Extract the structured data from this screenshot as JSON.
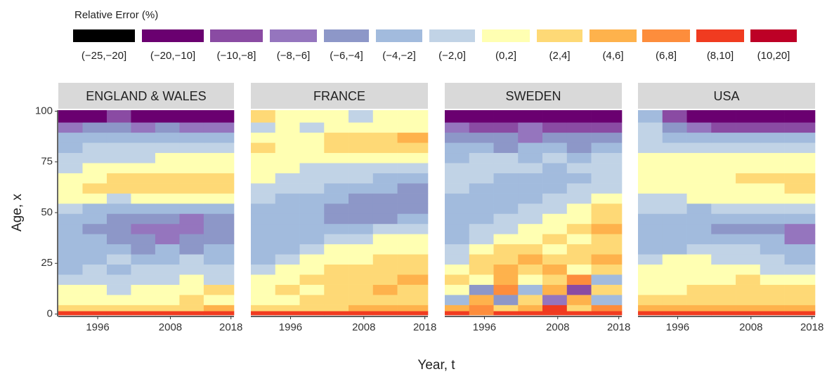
{
  "chart_data": {
    "type": "heatmap",
    "legend": {
      "title": "Relative Error (%)",
      "labels": [
        "(−25,−20]",
        "(−20,−10]",
        "(−10,−8]",
        "(−8,−6]",
        "(−6,−4]",
        "(−4,−2]",
        "(−2,0]",
        "(0,2]",
        "(2,4]",
        "(4,6]",
        "(6,8]",
        "(8,10]",
        "(10,20]"
      ],
      "breaks": [
        -25,
        -20,
        -10,
        -8,
        -6,
        -4,
        -2,
        0,
        2,
        4,
        6,
        8,
        10,
        20
      ],
      "colors": [
        "#000000",
        "#6a0070",
        "#8a4ba3",
        "#9575be",
        "#8d97c8",
        "#a2bbdd",
        "#c1d3e6",
        "#ffffb2",
        "#fed976",
        "#feb24c",
        "#fd8d3c",
        "#f03b20",
        "#bd0026"
      ]
    },
    "x_label": "Year, t",
    "y_label": "Age, x",
    "xlim": [
      1989.5,
      2018.5
    ],
    "ylim": [
      -0.5,
      100.5
    ],
    "xticks": [
      1996,
      2008,
      2018
    ],
    "yticks": [
      0,
      25,
      50,
      75,
      100
    ],
    "x": [
      1990,
      1994,
      1998,
      2002,
      2006,
      2010,
      2014
    ],
    "y": [
      0,
      2,
      5,
      10,
      15,
      20,
      25,
      30,
      35,
      40,
      45,
      50,
      55,
      60,
      65,
      70,
      75,
      80,
      85,
      90,
      95
    ],
    "panels": [
      {
        "title": "ENGLAND & WALES",
        "z": [
          [
            9,
            9,
            9,
            9,
            9,
            9,
            9
          ],
          [
            3,
            3,
            3,
            3,
            3,
            3,
            5
          ],
          [
            1,
            1,
            1,
            1,
            1,
            3,
            1
          ],
          [
            1,
            1,
            -1,
            1,
            1,
            1,
            3
          ],
          [
            -1,
            -1,
            -1,
            -1,
            -1,
            1,
            -1
          ],
          [
            -3,
            -1,
            -3,
            -1,
            -1,
            -1,
            -1
          ],
          [
            -3,
            -3,
            -1,
            -3,
            -3,
            -1,
            -3
          ],
          [
            -3,
            -3,
            -3,
            -5,
            -3,
            -5,
            -3
          ],
          [
            -3,
            -3,
            -5,
            -5,
            -7,
            -5,
            -5
          ],
          [
            -3,
            -5,
            -5,
            -7,
            -7,
            -7,
            -5
          ],
          [
            -3,
            -3,
            -5,
            -5,
            -5,
            -7,
            -5
          ],
          [
            -1,
            -3,
            -3,
            -3,
            -3,
            -3,
            -3
          ],
          [
            1,
            1,
            -1,
            1,
            1,
            1,
            1
          ],
          [
            1,
            3,
            3,
            3,
            3,
            3,
            3
          ],
          [
            1,
            1,
            3,
            3,
            3,
            3,
            3
          ],
          [
            -1,
            1,
            1,
            1,
            1,
            1,
            1
          ],
          [
            -1,
            -1,
            -1,
            -1,
            1,
            1,
            1
          ],
          [
            -3,
            -1,
            -1,
            -1,
            -1,
            -1,
            -1
          ],
          [
            -3,
            -3,
            -3,
            -3,
            -3,
            -3,
            -3
          ],
          [
            -7,
            -5,
            -5,
            -7,
            -5,
            -7,
            -7
          ],
          [
            -15,
            -15,
            -9,
            -15,
            -15,
            -15,
            -15
          ]
        ]
      },
      {
        "title": "FRANCE",
        "z": [
          [
            9,
            9,
            9,
            9,
            9,
            9,
            9
          ],
          [
            3,
            3,
            3,
            3,
            5,
            5,
            5
          ],
          [
            1,
            1,
            3,
            3,
            3,
            3,
            3
          ],
          [
            1,
            3,
            1,
            3,
            3,
            5,
            3
          ],
          [
            1,
            1,
            3,
            3,
            3,
            3,
            5
          ],
          [
            -1,
            1,
            1,
            3,
            3,
            3,
            3
          ],
          [
            -3,
            -1,
            1,
            1,
            1,
            3,
            3
          ],
          [
            -3,
            -3,
            -1,
            1,
            1,
            1,
            1
          ],
          [
            -3,
            -3,
            -3,
            -1,
            -1,
            1,
            1
          ],
          [
            -3,
            -3,
            -3,
            -3,
            -3,
            -1,
            -1
          ],
          [
            -3,
            -3,
            -3,
            -5,
            -5,
            -5,
            -3
          ],
          [
            -3,
            -3,
            -3,
            -5,
            -5,
            -5,
            -5
          ],
          [
            -1,
            -3,
            -3,
            -3,
            -5,
            -5,
            -5
          ],
          [
            -1,
            -1,
            -1,
            -3,
            -3,
            -3,
            -5
          ],
          [
            1,
            -1,
            -1,
            -1,
            -1,
            -3,
            -3
          ],
          [
            1,
            1,
            -1,
            -1,
            -1,
            -1,
            -1
          ],
          [
            1,
            1,
            1,
            1,
            1,
            1,
            1
          ],
          [
            3,
            1,
            1,
            3,
            3,
            3,
            3
          ],
          [
            1,
            1,
            1,
            3,
            3,
            3,
            5
          ],
          [
            -1,
            1,
            -1,
            1,
            1,
            1,
            1
          ],
          [
            3,
            1,
            1,
            1,
            -1,
            1,
            1
          ]
        ]
      },
      {
        "title": "SWEDEN",
        "z": [
          [
            9,
            7,
            9,
            9,
            9,
            9,
            9
          ],
          [
            5,
            7,
            3,
            5,
            9,
            3,
            7
          ],
          [
            -3,
            5,
            -5,
            3,
            -7,
            5,
            -3
          ],
          [
            1,
            -5,
            7,
            -3,
            5,
            -9,
            3
          ],
          [
            3,
            1,
            5,
            1,
            3,
            7,
            -3
          ],
          [
            1,
            3,
            5,
            3,
            5,
            1,
            3
          ],
          [
            -1,
            3,
            3,
            5,
            3,
            3,
            5
          ],
          [
            -1,
            1,
            3,
            3,
            1,
            3,
            3
          ],
          [
            -3,
            -1,
            1,
            1,
            3,
            1,
            3
          ],
          [
            -3,
            -1,
            -1,
            1,
            1,
            3,
            5
          ],
          [
            -3,
            -3,
            -1,
            -1,
            1,
            1,
            3
          ],
          [
            -3,
            -3,
            -3,
            -1,
            -1,
            1,
            3
          ],
          [
            -3,
            -3,
            -3,
            -3,
            -1,
            -1,
            1
          ],
          [
            -1,
            -3,
            -3,
            -3,
            -3,
            -1,
            -1
          ],
          [
            -1,
            -1,
            -3,
            -3,
            -3,
            -3,
            -1
          ],
          [
            -1,
            -1,
            -1,
            -1,
            -3,
            -1,
            -1
          ],
          [
            -3,
            -1,
            -1,
            -3,
            -1,
            -3,
            -1
          ],
          [
            -3,
            -3,
            -5,
            -3,
            -3,
            -5,
            -3
          ],
          [
            -5,
            -5,
            -5,
            -7,
            -5,
            -5,
            -5
          ],
          [
            -7,
            -9,
            -9,
            -7,
            -9,
            -9,
            -9
          ],
          [
            -15,
            -15,
            -15,
            -15,
            -15,
            -15,
            -15
          ]
        ]
      },
      {
        "title": "USA",
        "z": [
          [
            9,
            9,
            9,
            9,
            9,
            9,
            9
          ],
          [
            5,
            5,
            5,
            5,
            5,
            5,
            5
          ],
          [
            3,
            3,
            3,
            3,
            3,
            3,
            3
          ],
          [
            1,
            1,
            3,
            3,
            3,
            3,
            3
          ],
          [
            1,
            1,
            1,
            1,
            3,
            1,
            1
          ],
          [
            1,
            1,
            1,
            1,
            1,
            -1,
            -1
          ],
          [
            -1,
            1,
            1,
            -1,
            -1,
            -1,
            -3
          ],
          [
            -3,
            -3,
            -1,
            -1,
            -1,
            -3,
            -3
          ],
          [
            -3,
            -3,
            -3,
            -3,
            -3,
            -3,
            -7
          ],
          [
            -3,
            -3,
            -3,
            -5,
            -5,
            -5,
            -7
          ],
          [
            -3,
            -3,
            -3,
            -3,
            -3,
            -3,
            -3
          ],
          [
            -1,
            -1,
            -3,
            -1,
            -1,
            -1,
            -1
          ],
          [
            -1,
            -1,
            1,
            1,
            1,
            1,
            1
          ],
          [
            1,
            1,
            1,
            1,
            1,
            1,
            3
          ],
          [
            1,
            1,
            1,
            1,
            3,
            3,
            3
          ],
          [
            1,
            1,
            1,
            1,
            1,
            1,
            1
          ],
          [
            1,
            1,
            1,
            1,
            1,
            1,
            1
          ],
          [
            -1,
            -1,
            -1,
            -1,
            -1,
            -1,
            -1
          ],
          [
            -1,
            -3,
            -3,
            -3,
            -3,
            -3,
            -3
          ],
          [
            -1,
            -5,
            -7,
            -9,
            -9,
            -9,
            -9
          ],
          [
            -3,
            -9,
            -15,
            -15,
            -15,
            -15,
            -15
          ]
        ]
      }
    ]
  }
}
